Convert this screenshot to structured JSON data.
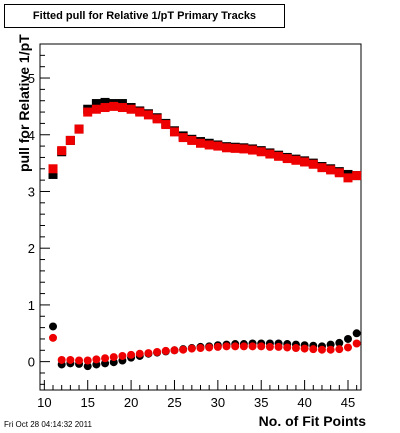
{
  "chart_data": {
    "type": "scatter",
    "title": "Fitted pull for Relative 1/pT Primary Tracks",
    "xlabel": "No. of Fit Points",
    "ylabel": "pull for Relative 1/pT",
    "xlim": [
      9.5,
      46.5
    ],
    "ylim": [
      -0.5,
      5.6
    ],
    "x_ticks": [
      10,
      15,
      20,
      25,
      30,
      35,
      40,
      45
    ],
    "y_ticks": [
      0,
      1,
      2,
      3,
      4,
      5
    ],
    "grid": false,
    "legend": "none",
    "x": [
      11,
      12,
      13,
      14,
      15,
      16,
      17,
      18,
      19,
      20,
      21,
      22,
      23,
      24,
      25,
      26,
      27,
      28,
      29,
      30,
      31,
      32,
      33,
      34,
      35,
      36,
      37,
      38,
      39,
      40,
      41,
      42,
      43,
      44,
      45,
      46
    ],
    "series": [
      {
        "marker": "square",
        "color": "#000000",
        "values": [
          3.3,
          3.7,
          3.9,
          4.1,
          4.45,
          4.55,
          4.57,
          4.55,
          4.55,
          4.48,
          4.42,
          4.37,
          4.3,
          4.2,
          4.07,
          3.98,
          3.92,
          3.88,
          3.85,
          3.82,
          3.79,
          3.78,
          3.77,
          3.75,
          3.72,
          3.68,
          3.64,
          3.6,
          3.57,
          3.54,
          3.5,
          3.44,
          3.4,
          3.35,
          3.3,
          3.28
        ]
      },
      {
        "marker": "square",
        "color": "#ee0000",
        "values": [
          3.4,
          3.72,
          3.9,
          4.1,
          4.4,
          4.45,
          4.48,
          4.5,
          4.48,
          4.45,
          4.4,
          4.35,
          4.28,
          4.18,
          4.05,
          3.95,
          3.9,
          3.85,
          3.82,
          3.8,
          3.77,
          3.76,
          3.75,
          3.73,
          3.7,
          3.66,
          3.62,
          3.58,
          3.55,
          3.52,
          3.48,
          3.42,
          3.38,
          3.33,
          3.24,
          3.28
        ]
      },
      {
        "marker": "circle",
        "color": "#000000",
        "values": [
          0.62,
          -0.05,
          -0.03,
          -0.04,
          -0.08,
          -0.05,
          -0.03,
          -0.01,
          0.02,
          0.07,
          0.1,
          0.14,
          0.16,
          0.18,
          0.2,
          0.22,
          0.24,
          0.26,
          0.27,
          0.29,
          0.3,
          0.31,
          0.31,
          0.32,
          0.32,
          0.32,
          0.32,
          0.31,
          0.3,
          0.29,
          0.28,
          0.27,
          0.3,
          0.33,
          0.4,
          0.5
        ]
      },
      {
        "marker": "circle",
        "color": "#ee0000",
        "values": [
          0.42,
          0.03,
          0.03,
          0.02,
          0.02,
          0.04,
          0.06,
          0.08,
          0.1,
          0.12,
          0.14,
          0.15,
          0.17,
          0.19,
          0.2,
          0.21,
          0.23,
          0.24,
          0.25,
          0.26,
          0.27,
          0.27,
          0.27,
          0.27,
          0.27,
          0.26,
          0.26,
          0.25,
          0.24,
          0.23,
          0.22,
          0.21,
          0.21,
          0.22,
          0.25,
          0.32
        ]
      }
    ]
  },
  "footer": "Fri Oct 28 04:14:32 2011"
}
